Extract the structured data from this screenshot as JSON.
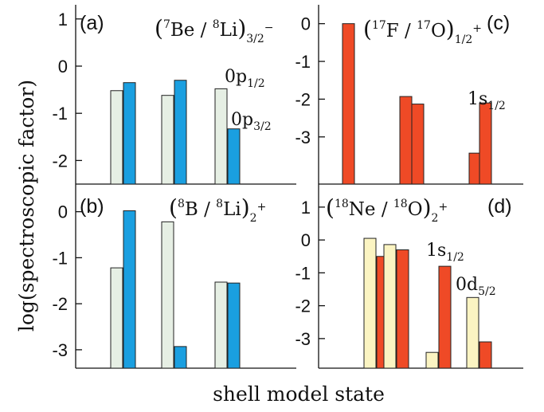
{
  "figure": {
    "ylabel": "log(spectroscopic factor)",
    "xlabel": "shell model state"
  },
  "chart_data": [
    {
      "type": "bar",
      "panel": "(a)",
      "title_nuclei": [
        "7",
        "Be",
        "8",
        "Li"
      ],
      "title_sub": "3/2",
      "title_sup": "−",
      "ylim": [
        -2.5,
        1.3
      ],
      "yticks": [
        "1",
        "0",
        "-1",
        "-2"
      ],
      "annotations": [
        {
          "main": "0p",
          "sub": "1/2"
        },
        {
          "main": "0p",
          "sub": "3/2"
        }
      ],
      "series": [
        {
          "color": "#e6efe4",
          "values": [
            -0.52,
            -0.62,
            -0.48
          ]
        },
        {
          "color": "#1a9fe0",
          "values": [
            -0.35,
            -0.3,
            -1.33
          ]
        }
      ]
    },
    {
      "type": "bar",
      "panel": "(b)",
      "title_nuclei": [
        "8",
        "B",
        "8",
        "Li"
      ],
      "title_sub": "2",
      "title_sup": "+",
      "ylim": [
        -3.4,
        0.6
      ],
      "yticks": [
        "0",
        "-1",
        "-2",
        "-3"
      ],
      "series": [
        {
          "color": "#e6efe4",
          "values": [
            -1.22,
            -0.22,
            -1.53
          ]
        },
        {
          "color": "#1a9fe0",
          "values": [
            0.02,
            -2.93,
            -1.55
          ]
        }
      ]
    },
    {
      "type": "bar",
      "panel": "(c)",
      "title_nuclei": [
        "17",
        "F",
        "17",
        "O"
      ],
      "title_sub": "1/2",
      "title_sup": "+",
      "ylim": [
        -4.25,
        0.5
      ],
      "yticks": [
        "0",
        "-1",
        "-2",
        "-3"
      ],
      "annotations": [
        {
          "main": "1s",
          "sub": "1/2"
        }
      ],
      "series": [
        {
          "color": "#ef4a26",
          "values": [
            0.0,
            -1.93,
            -2.13,
            -3.43,
            -2.1
          ]
        }
      ]
    },
    {
      "type": "bar",
      "panel": "(d)",
      "title_nuclei": [
        "18",
        "Ne",
        "18",
        "O"
      ],
      "title_sub": "2",
      "title_sup": "+",
      "ylim": [
        -3.9,
        1.7
      ],
      "yticks": [
        "1",
        "0",
        "-1",
        "-2",
        "-3"
      ],
      "annotations": [
        {
          "main": "1s",
          "sub": "1/2"
        },
        {
          "main": "0d",
          "sub": "5/2"
        }
      ],
      "series": [
        {
          "color": "#fbf4c2",
          "values": [
            0.05,
            -0.14,
            -3.42,
            -1.75
          ]
        },
        {
          "color": "#ef4a26",
          "values": [
            -0.5,
            -0.3,
            -0.8,
            -3.1
          ]
        }
      ]
    }
  ]
}
